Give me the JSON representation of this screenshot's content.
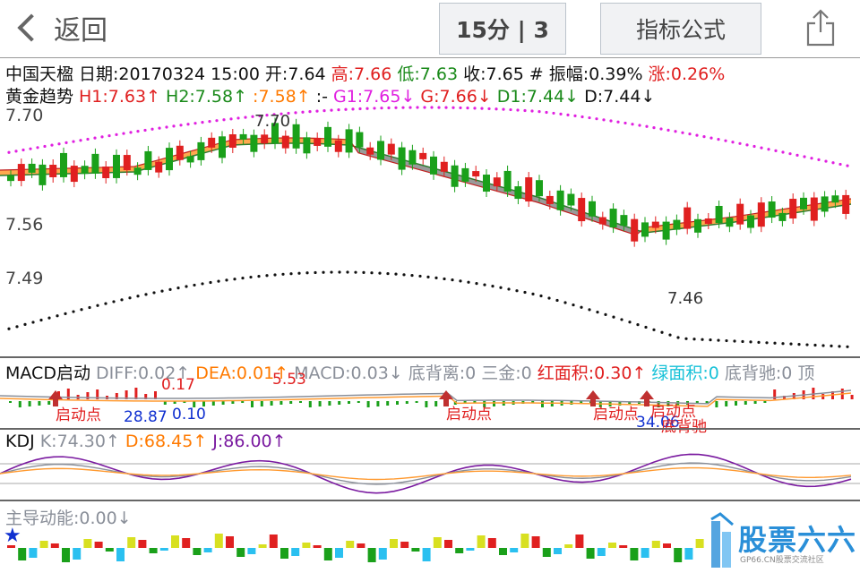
{
  "topbar": {
    "back_label": "返回",
    "period_label": "15分 | 3",
    "formula_label": "指标公式"
  },
  "info": {
    "name": "中国天楹",
    "date": "日期:20170324 15:00",
    "open": "开:7.64",
    "high": "高:7.66",
    "low": "低:7.63",
    "close": "收:7.65",
    "amplitude": "# 振幅:0.39%",
    "change": "涨:0.26%"
  },
  "trend": {
    "title": "黄金趋势",
    "h1": "H1:7.63↑",
    "h2": "H2:7.58↑",
    "h3": ":7.58↑",
    "sep": ":-",
    "g1": "G1:7.65↓",
    "g": "G:7.66↓",
    "d1": "D1:7.44↓",
    "d": "D:7.44↓"
  },
  "y_labels": [
    "7.70",
    "7.56",
    "7.49"
  ],
  "main_annotations": {
    "high": "7.70",
    "low": "7.46"
  },
  "macd": {
    "title": "MACD启动",
    "diff": "DIFF:0.02↑",
    "dea": "DEA:0.01↑",
    "macd": "MACD:0.03↓",
    "bottom_div": "底背离:0",
    "three_gold": "三金:0",
    "red_area": "红面积:0.30↑",
    "green_area": "绿面积:0",
    "bottom_chi": "底背驰:0",
    "tail": "顶",
    "start_label": "启动点",
    "div_label": "底背驰",
    "nums": [
      "0.17",
      "5.53",
      "28.87",
      "0.10",
      "34.06"
    ]
  },
  "kdj": {
    "title": "KDJ",
    "k": "K:74.30↑",
    "d": "D:68.45↑",
    "j": "J:86.00↑"
  },
  "flow": {
    "title": "主导动能:0.00↓",
    "logo_text": "股票六六",
    "logo_sub": "GP66.CN股票交流社区"
  },
  "colors": {
    "up": "#e02020",
    "down": "#1aa01a",
    "orange": "#ff9a30",
    "grey_fill": "#9a9a9a"
  }
}
